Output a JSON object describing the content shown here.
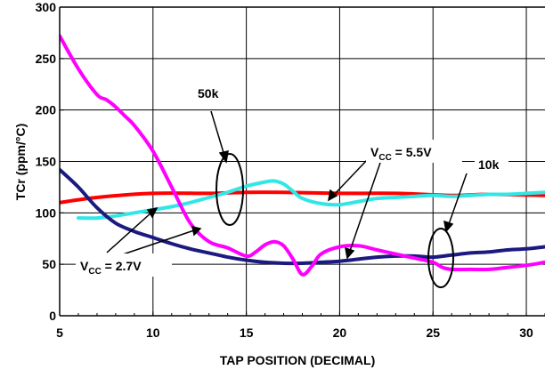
{
  "chart_data": {
    "type": "line",
    "title": "",
    "xlabel": "TAP POSITION (DECIMAL)",
    "ylabel": "TCr (ppm/°C)",
    "xlim": [
      5,
      31
    ],
    "ylim": [
      0,
      300
    ],
    "xticks": [
      5,
      10,
      15,
      20,
      25,
      30
    ],
    "yticks": [
      0,
      50,
      100,
      150,
      200,
      250,
      300
    ],
    "grid": true,
    "legend": "none",
    "series": [
      {
        "color": "#ff0000",
        "x": [
          5,
          7,
          10,
          13,
          15,
          17,
          20,
          23,
          26,
          28,
          31
        ],
        "y": [
          110,
          115,
          119,
          119,
          120,
          120,
          119,
          119,
          117,
          118,
          117
        ]
      },
      {
        "color": "#33e6e6",
        "x": [
          6,
          7,
          8,
          9,
          10,
          11,
          12,
          13,
          14,
          15,
          16,
          16.5,
          17,
          17.5,
          18,
          19,
          20,
          21,
          22,
          23,
          24,
          25,
          26,
          27,
          28,
          29,
          30,
          31
        ],
        "y": [
          95,
          95,
          97,
          100,
          103,
          106,
          110,
          115,
          120,
          126,
          130,
          131,
          128,
          121,
          114,
          109,
          108,
          111,
          114,
          115,
          116,
          117,
          116,
          117,
          118,
          118,
          119,
          120
        ]
      },
      {
        "color": "#1a1a80",
        "x": [
          5,
          6,
          7,
          8,
          9,
          10,
          11,
          12,
          13,
          14,
          15,
          16,
          17,
          18,
          19,
          20,
          21,
          22,
          23,
          24,
          25,
          26,
          27,
          28,
          29,
          30,
          31
        ],
        "y": [
          142,
          125,
          105,
          90,
          82,
          76,
          70,
          65,
          61,
          57,
          54,
          52,
          51,
          51,
          52,
          53,
          55,
          57,
          58,
          58,
          57,
          59,
          61,
          62,
          64,
          65,
          67
        ]
      },
      {
        "color": "#ff00ff",
        "x": [
          5,
          6,
          7,
          7.5,
          8,
          8.5,
          9,
          10,
          11,
          12,
          13,
          14,
          15,
          15.5,
          16,
          16.5,
          17,
          17.5,
          18,
          18.5,
          19,
          20,
          21,
          22,
          23,
          24,
          25,
          25.5,
          26,
          27,
          28,
          29,
          30,
          31
        ],
        "y": [
          272,
          240,
          215,
          210,
          203,
          194,
          185,
          160,
          125,
          90,
          72,
          66,
          58,
          62,
          69,
          72,
          68,
          55,
          40,
          48,
          60,
          67,
          68,
          64,
          60,
          56,
          52,
          47,
          45,
          45,
          45,
          47,
          49,
          52
        ]
      }
    ],
    "annotations": [
      {
        "text": "50k"
      },
      {
        "text": "10k"
      },
      {
        "text": "V",
        "sub": "CC",
        "rest": " = 5.5V"
      },
      {
        "text": "V",
        "sub": "CC",
        "rest": " = 2.7V"
      }
    ]
  }
}
